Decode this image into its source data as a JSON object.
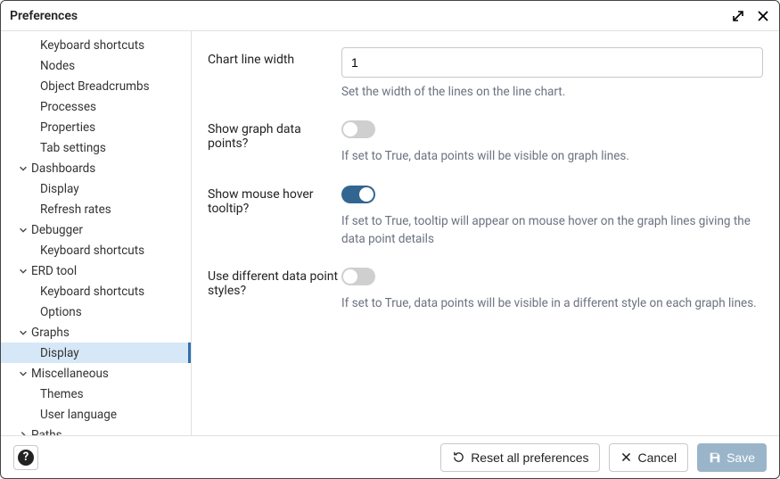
{
  "dialog": {
    "title": "Preferences"
  },
  "sidebar": {
    "items": [
      {
        "type": "leaf",
        "label": "Keyboard shortcuts"
      },
      {
        "type": "leaf",
        "label": "Nodes"
      },
      {
        "type": "leaf",
        "label": "Object Breadcrumbs"
      },
      {
        "type": "leaf",
        "label": "Processes"
      },
      {
        "type": "leaf",
        "label": "Properties"
      },
      {
        "type": "leaf",
        "label": "Tab settings"
      },
      {
        "type": "group",
        "label": "Dashboards",
        "expanded": true
      },
      {
        "type": "leaf",
        "label": "Display"
      },
      {
        "type": "leaf",
        "label": "Refresh rates"
      },
      {
        "type": "group",
        "label": "Debugger",
        "expanded": true
      },
      {
        "type": "leaf",
        "label": "Keyboard shortcuts"
      },
      {
        "type": "group",
        "label": "ERD tool",
        "expanded": true
      },
      {
        "type": "leaf",
        "label": "Keyboard shortcuts"
      },
      {
        "type": "leaf",
        "label": "Options"
      },
      {
        "type": "group",
        "label": "Graphs",
        "expanded": true
      },
      {
        "type": "leaf",
        "label": "Display",
        "selected": true
      },
      {
        "type": "group",
        "label": "Miscellaneous",
        "expanded": true
      },
      {
        "type": "leaf",
        "label": "Themes"
      },
      {
        "type": "leaf",
        "label": "User language"
      },
      {
        "type": "group",
        "label": "Paths",
        "expanded": false
      }
    ]
  },
  "form": {
    "rows": [
      {
        "label": "Chart line width",
        "kind": "text",
        "value": "1",
        "help": "Set the width of the lines on the line chart."
      },
      {
        "label": "Show graph data points?",
        "kind": "toggle",
        "value": false,
        "help": "If set to True, data points will be visible on graph lines."
      },
      {
        "label": "Show mouse hover tooltip?",
        "kind": "toggle",
        "value": true,
        "help": "If set to True, tooltip will appear on mouse hover on the graph lines giving the data point details"
      },
      {
        "label": "Use different data point styles?",
        "kind": "toggle",
        "value": false,
        "help": "If set to True, data points will be visible in a different style on each graph lines."
      }
    ]
  },
  "footer": {
    "reset": "Reset all preferences",
    "cancel": "Cancel",
    "save": "Save"
  },
  "colors": {
    "selection_bg": "#d6e8f7",
    "selection_bar": "#2f6fb0",
    "toggle_on": "#326690",
    "toggle_off": "#cfcfcf",
    "primary_btn": "#9ab5c9",
    "help_text": "#6b7280",
    "border": "#c8c8c8"
  }
}
